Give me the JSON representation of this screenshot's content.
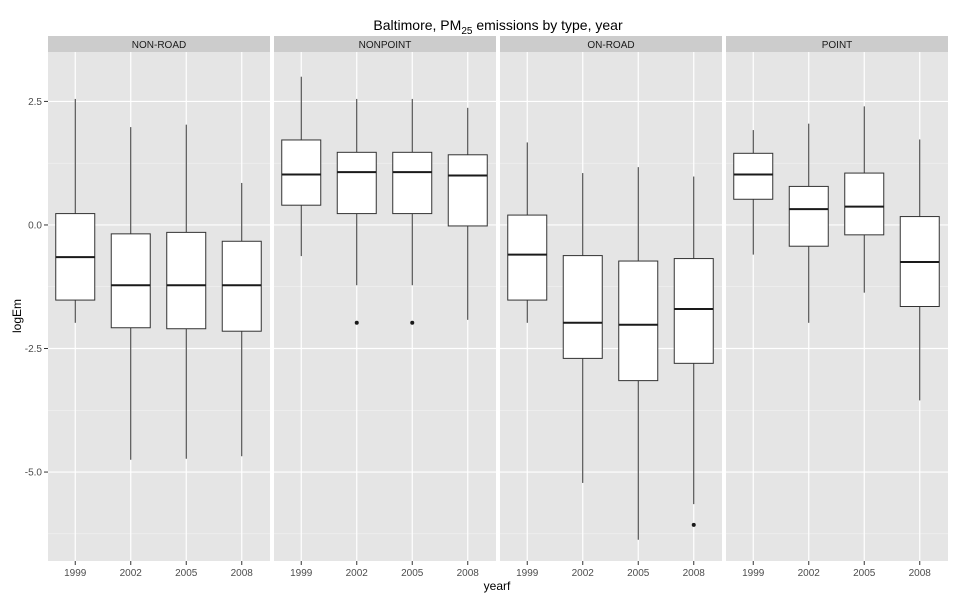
{
  "chart_data": {
    "type": "boxplot",
    "title": "Baltimore, PM",
    "title_subscript": "25",
    "title_suffix": " emissions by type, year",
    "xlabel": "yearf",
    "ylabel": "logEm",
    "categories": [
      "1999",
      "2002",
      "2005",
      "2008"
    ],
    "ylim": [
      -6.8,
      3.5
    ],
    "y_ticks": [
      2.5,
      0.0,
      -2.5,
      -5.0
    ],
    "y_tick_labels": [
      "2.5",
      "0.0",
      "-2.5",
      "-5.0"
    ],
    "grid": true,
    "panel_background": "#e5e5e5",
    "strip_background": "#cccccc",
    "grid_color": "#ffffff",
    "panels": [
      {
        "name": "NON-ROAD",
        "boxes": [
          {
            "category": "1999",
            "min": -1.98,
            "q1": -1.52,
            "median": -0.65,
            "q3": 0.23,
            "max": 2.55,
            "outliers": []
          },
          {
            "category": "2002",
            "min": -4.75,
            "q1": -2.08,
            "median": -1.22,
            "q3": -0.18,
            "max": 1.98,
            "outliers": []
          },
          {
            "category": "2005",
            "min": -4.73,
            "q1": -2.1,
            "median": -1.22,
            "q3": -0.15,
            "max": 2.03,
            "outliers": []
          },
          {
            "category": "2008",
            "min": -4.68,
            "q1": -2.15,
            "median": -1.22,
            "q3": -0.33,
            "max": 0.85,
            "outliers": []
          }
        ]
      },
      {
        "name": "NONPOINT",
        "boxes": [
          {
            "category": "1999",
            "min": -0.63,
            "q1": 0.4,
            "median": 1.02,
            "q3": 1.72,
            "max": 3.0,
            "outliers": []
          },
          {
            "category": "2002",
            "min": -1.22,
            "q1": 0.23,
            "median": 1.07,
            "q3": 1.47,
            "max": 2.55,
            "outliers": [
              -1.98
            ]
          },
          {
            "category": "2005",
            "min": -1.22,
            "q1": 0.23,
            "median": 1.07,
            "q3": 1.47,
            "max": 2.55,
            "outliers": [
              -1.98
            ]
          },
          {
            "category": "2008",
            "min": -1.92,
            "q1": -0.02,
            "median": 1.0,
            "q3": 1.42,
            "max": 2.37,
            "outliers": []
          }
        ]
      },
      {
        "name": "ON-ROAD",
        "boxes": [
          {
            "category": "1999",
            "min": -1.98,
            "q1": -1.52,
            "median": -0.6,
            "q3": 0.2,
            "max": 1.67,
            "outliers": []
          },
          {
            "category": "2002",
            "min": -5.22,
            "q1": -2.7,
            "median": -1.98,
            "q3": -0.62,
            "max": 1.05,
            "outliers": []
          },
          {
            "category": "2005",
            "min": -6.37,
            "q1": -3.15,
            "median": -2.02,
            "q3": -0.73,
            "max": 1.17,
            "outliers": []
          },
          {
            "category": "2008",
            "min": -5.65,
            "q1": -2.8,
            "median": -1.7,
            "q3": -0.68,
            "max": 0.98,
            "outliers": [
              -6.07
            ]
          }
        ]
      },
      {
        "name": "POINT",
        "boxes": [
          {
            "category": "1999",
            "min": -0.6,
            "q1": 0.52,
            "median": 1.02,
            "q3": 1.45,
            "max": 1.92,
            "outliers": []
          },
          {
            "category": "2002",
            "min": -1.98,
            "q1": -0.43,
            "median": 0.32,
            "q3": 0.78,
            "max": 2.05,
            "outliers": []
          },
          {
            "category": "2005",
            "min": -1.37,
            "q1": -0.2,
            "median": 0.37,
            "q3": 1.05,
            "max": 2.4,
            "outliers": []
          },
          {
            "category": "2008",
            "min": -3.55,
            "q1": -1.65,
            "median": -0.75,
            "q3": 0.17,
            "max": 1.73,
            "outliers": []
          }
        ]
      }
    ]
  }
}
